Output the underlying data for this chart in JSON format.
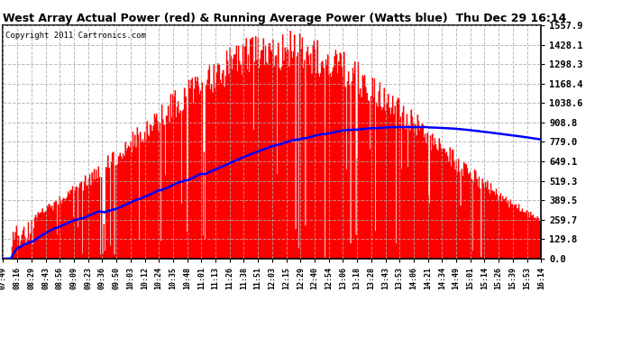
{
  "title": "West Array Actual Power (red) & Running Average Power (Watts blue)  Thu Dec 29 16:14",
  "copyright": "Copyright 2011 Cartronics.com",
  "background_color": "#ffffff",
  "plot_bg_color": "#ffffff",
  "grid_color": "#aaaaaa",
  "bar_color": "#ff0000",
  "line_color": "#0000ff",
  "yticks": [
    0.0,
    129.8,
    259.7,
    389.5,
    519.3,
    649.1,
    779.0,
    908.8,
    1038.6,
    1168.4,
    1298.3,
    1428.1,
    1557.9
  ],
  "ymax": 1557.9,
  "x_labels": [
    "07:49",
    "08:16",
    "08:29",
    "08:43",
    "08:56",
    "09:09",
    "09:23",
    "09:36",
    "09:50",
    "10:03",
    "10:12",
    "10:24",
    "10:35",
    "10:48",
    "11:01",
    "11:13",
    "11:26",
    "11:38",
    "11:51",
    "12:03",
    "12:15",
    "12:29",
    "12:40",
    "12:54",
    "13:06",
    "13:18",
    "13:28",
    "13:43",
    "13:53",
    "14:06",
    "14:21",
    "14:34",
    "14:49",
    "15:01",
    "15:14",
    "15:26",
    "15:39",
    "15:53",
    "16:14"
  ]
}
